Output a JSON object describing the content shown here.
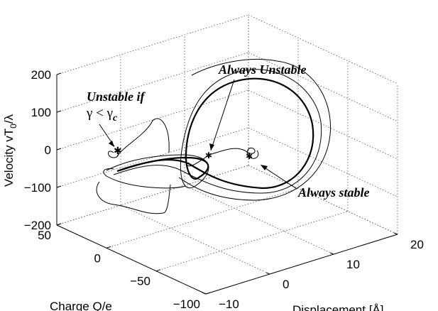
{
  "chart_data": {
    "type": "line3d",
    "xlabel": "Displacement  [Å]",
    "ylabel": "Charge Q/e",
    "zlabel": {
      "text": "Velocity vT",
      "sub": "0",
      "rest": "/λ"
    },
    "xlim": [
      -10,
      20
    ],
    "xticks": [
      {
        "value": -10,
        "label": "−10"
      },
      0,
      10,
      20
    ],
    "ylim": [
      -100,
      50
    ],
    "yticks": [
      {
        "value": -100,
        "label": "−100"
      },
      {
        "value": -50,
        "label": "−50"
      },
      0,
      50
    ],
    "zlim": [
      -200,
      200
    ],
    "zticks": [
      {
        "value": -200,
        "label": "−200"
      },
      {
        "value": -100,
        "label": "−100"
      },
      0,
      100,
      200
    ],
    "grid": true,
    "annotations": {
      "always_unstable": "Always Unstable",
      "unstable_if": "Unstable if",
      "gamma": {
        "text": "γ < γ",
        "sub": "c"
      },
      "always_stable": "Always stable"
    }
  }
}
